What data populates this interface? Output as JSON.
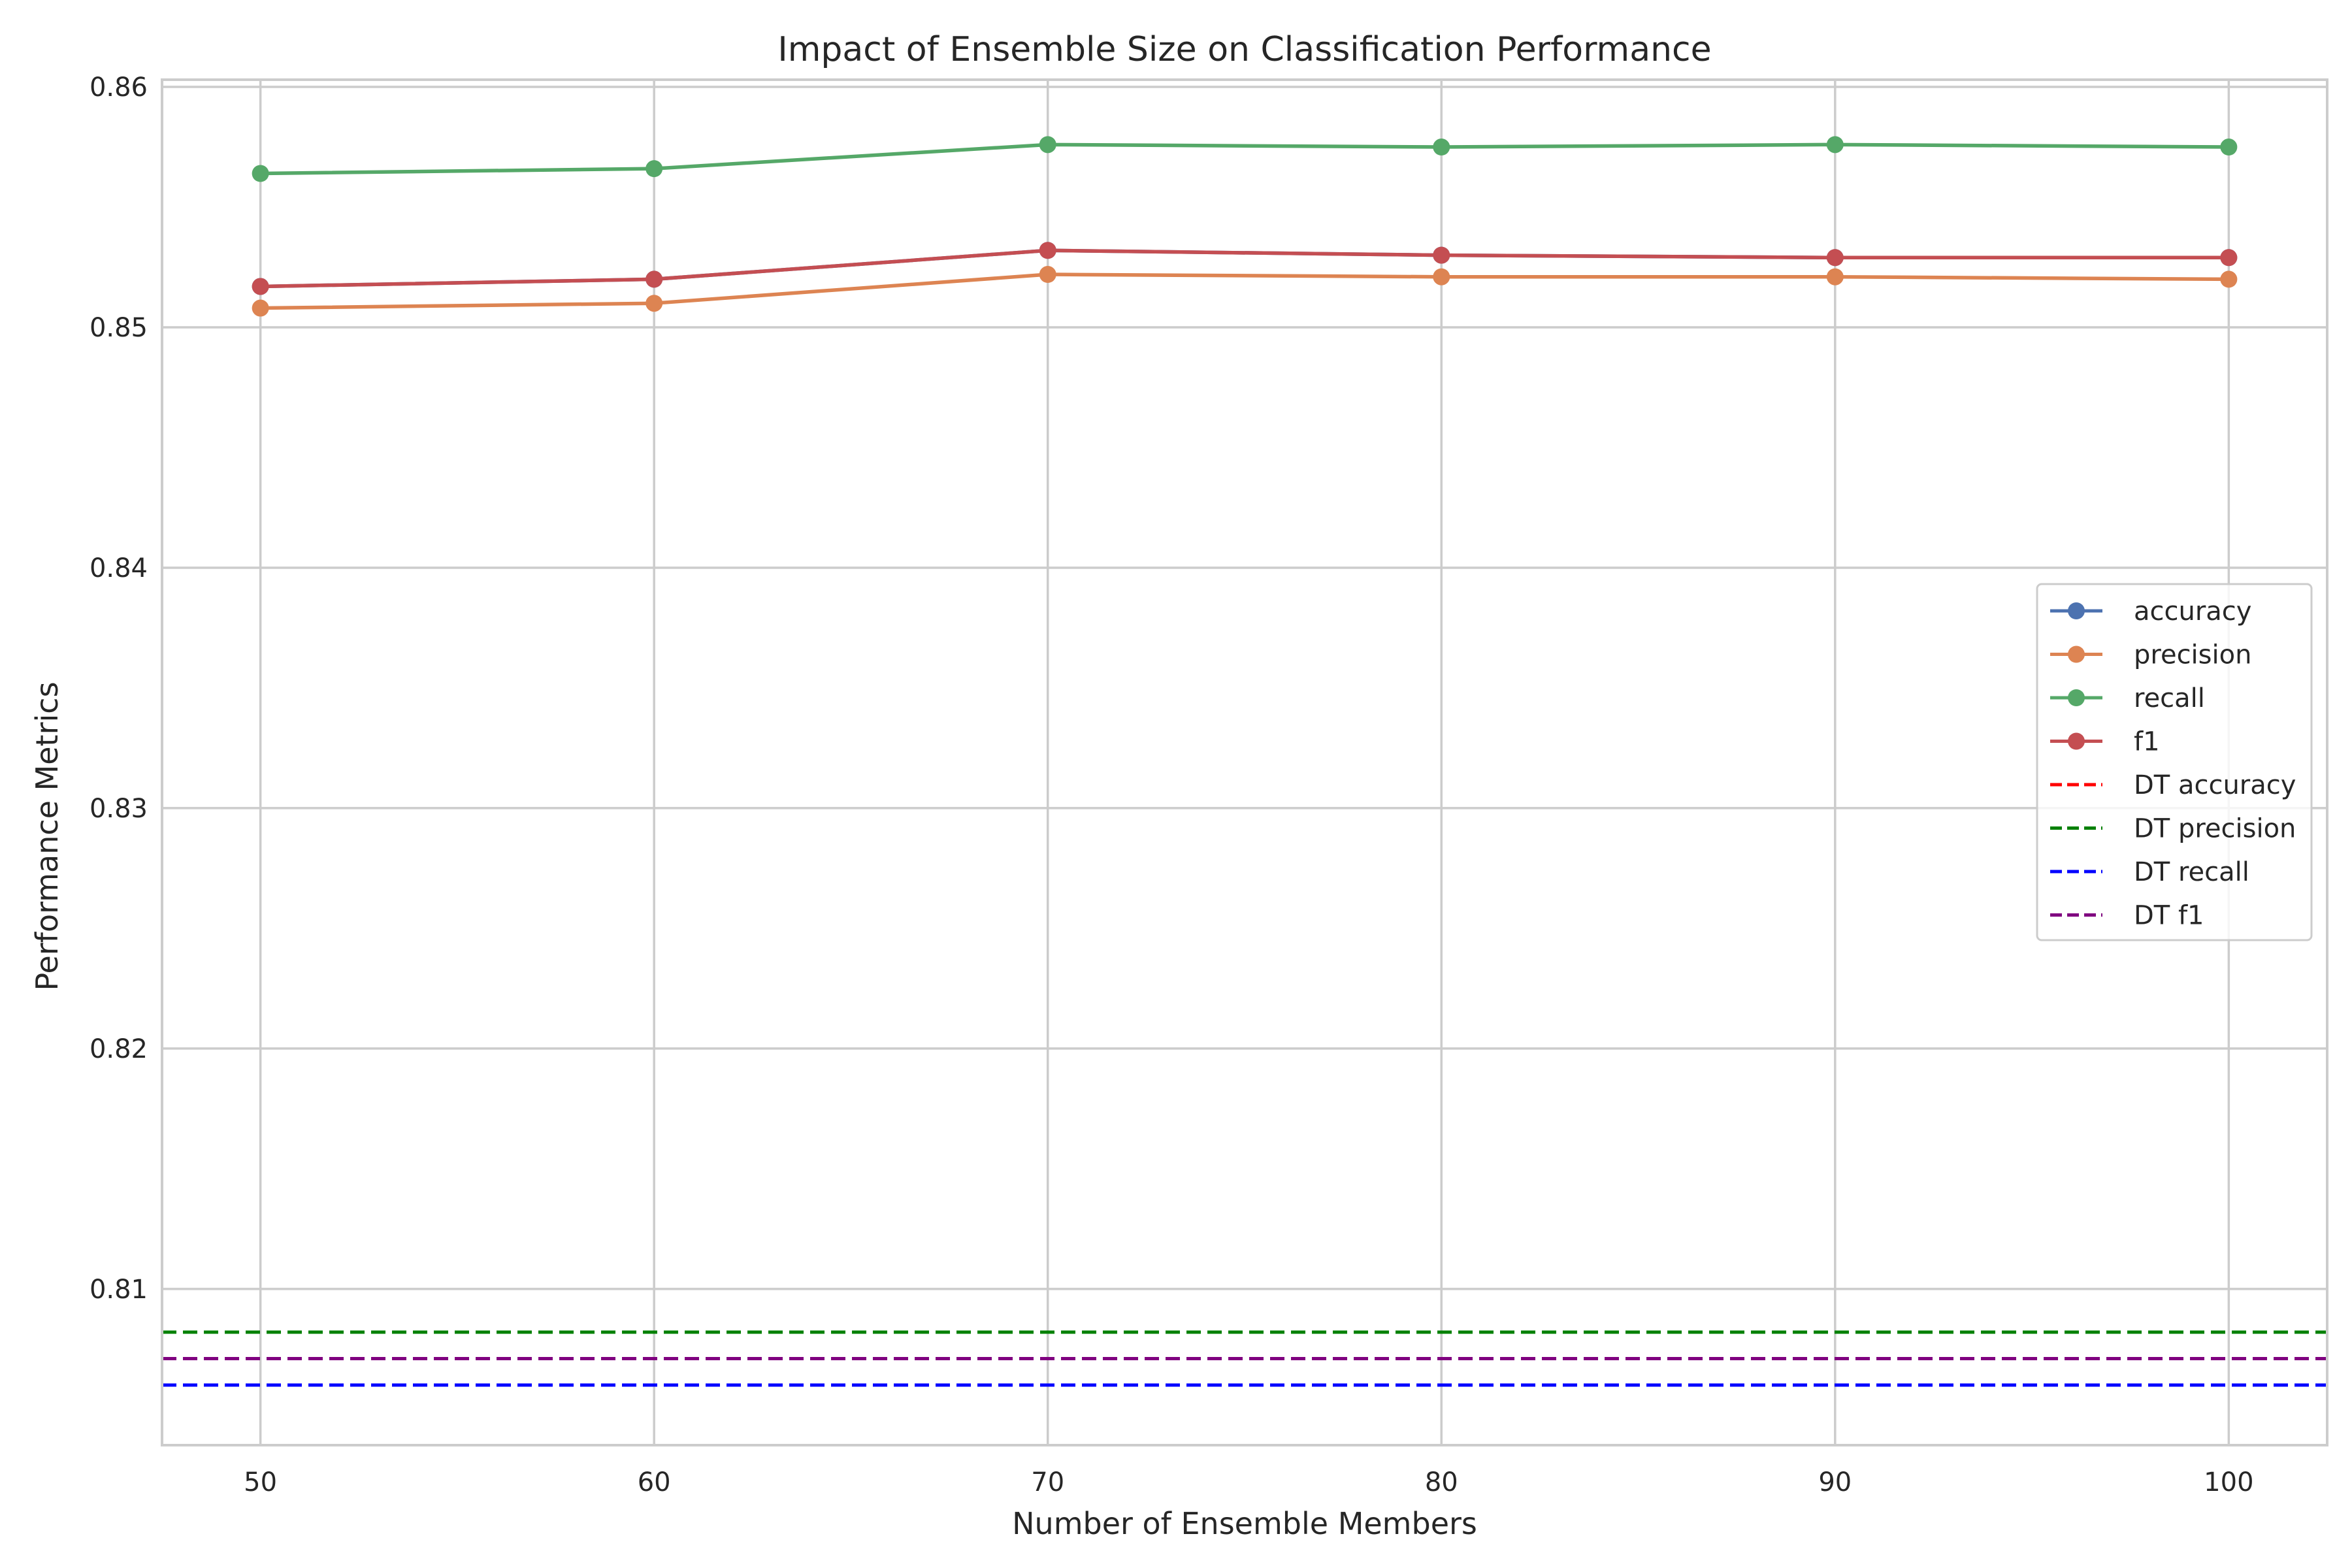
{
  "chart_data": {
    "type": "line",
    "title": "Impact of Ensemble Size on Classification Performance",
    "xlabel": "Number of Ensemble Members",
    "ylabel": "Performance Metrics",
    "x": [
      50,
      60,
      70,
      80,
      90,
      100
    ],
    "x_ticks": [
      "50",
      "60",
      "70",
      "80",
      "90",
      "100"
    ],
    "y_ticks": [
      "0.81",
      "0.82",
      "0.83",
      "0.84",
      "0.85",
      "0.86"
    ],
    "xlim": [
      47.5,
      102.5
    ],
    "ylim": [
      0.8035,
      0.8603
    ],
    "grid": true,
    "legend_position": "center-right",
    "series": [
      {
        "name": "accuracy",
        "color": "#4c72b0",
        "marker": "circle",
        "style": "solid",
        "values": [
          0.8517,
          0.852,
          0.8532,
          0.853,
          0.8529,
          0.8529
        ]
      },
      {
        "name": "precision",
        "color": "#dd8452",
        "marker": "circle",
        "style": "solid",
        "values": [
          0.8508,
          0.851,
          0.8522,
          0.8521,
          0.8521,
          0.852
        ]
      },
      {
        "name": "recall",
        "color": "#55a868",
        "marker": "circle",
        "style": "solid",
        "values": [
          0.8564,
          0.8566,
          0.8576,
          0.8575,
          0.8576,
          0.8575
        ]
      },
      {
        "name": "f1",
        "color": "#c44e52",
        "marker": "circle",
        "style": "solid",
        "values": [
          0.8517,
          0.852,
          0.8532,
          0.853,
          0.8529,
          0.8529
        ]
      }
    ],
    "reference_lines": [
      {
        "name": "DT accuracy",
        "color": "#ff0000",
        "style": "dashed",
        "value": 0.806
      },
      {
        "name": "DT precision",
        "color": "#008000",
        "style": "dashed",
        "value": 0.8082
      },
      {
        "name": "DT recall",
        "color": "#0000ff",
        "style": "dashed",
        "value": 0.806
      },
      {
        "name": "DT f1",
        "color": "#800080",
        "style": "dashed",
        "value": 0.8071
      }
    ]
  }
}
